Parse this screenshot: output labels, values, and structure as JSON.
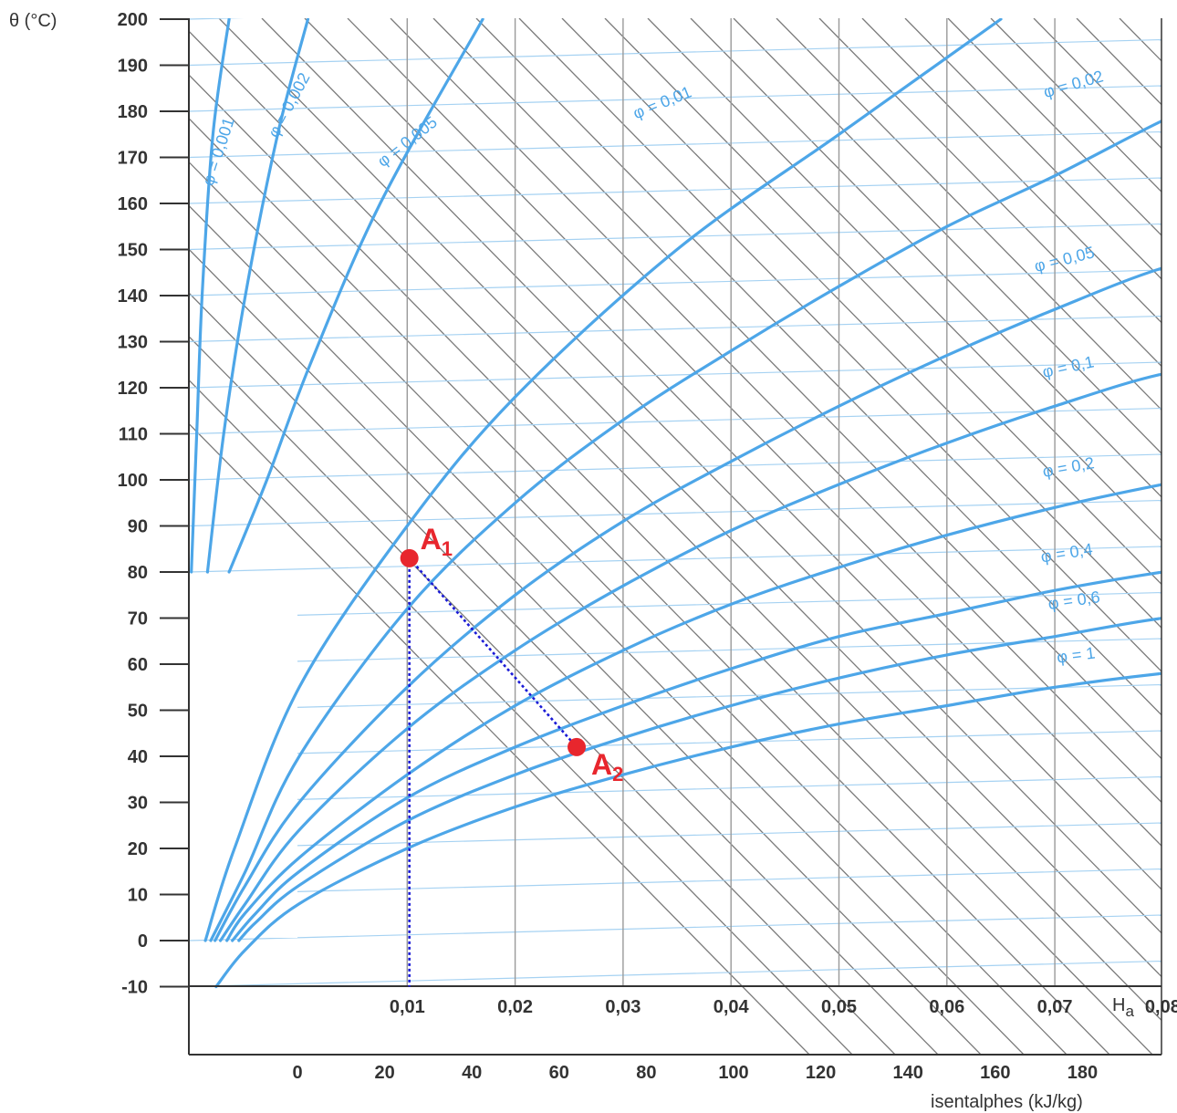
{
  "chart_data": {
    "type": "line",
    "title": "",
    "ylabel": "θ (°C)",
    "xlabel": "H",
    "xlabel_sub": "a",
    "x2label": "isentalphes (kJ/kg)",
    "ylim": [
      -10,
      200
    ],
    "xlim": [
      -0.01,
      0.08
    ],
    "y_ticks": [
      "200",
      "190",
      "180",
      "170",
      "160",
      "150",
      "140",
      "130",
      "120",
      "110",
      "100",
      "90",
      "80",
      "70",
      "60",
      "50",
      "40",
      "30",
      "20",
      "10",
      "0",
      "-10"
    ],
    "x_ticks": [
      {
        "value": 0.01,
        "label": "0,01"
      },
      {
        "value": 0.02,
        "label": "0,02"
      },
      {
        "value": 0.03,
        "label": "0,03"
      },
      {
        "value": 0.04,
        "label": "0,04"
      },
      {
        "value": 0.05,
        "label": "0,05"
      },
      {
        "value": 0.06,
        "label": "0,06"
      },
      {
        "value": 0.07,
        "label": "0,07"
      },
      {
        "value": 0.08,
        "label": "0,08"
      }
    ],
    "enthalpy_ticks": [
      {
        "value": 0,
        "label": "0"
      },
      {
        "value": 20,
        "label": "20"
      },
      {
        "value": 40,
        "label": "40"
      },
      {
        "value": 60,
        "label": "60"
      },
      {
        "value": 80,
        "label": "80"
      },
      {
        "value": 100,
        "label": "100"
      },
      {
        "value": 120,
        "label": "120"
      },
      {
        "value": 140,
        "label": "140"
      },
      {
        "value": 160,
        "label": "160"
      },
      {
        "value": 180,
        "label": "180"
      }
    ],
    "grid": true,
    "series": [
      {
        "label": "φ = 0,001",
        "x": [
          -0.01,
          -0.0095,
          -0.009,
          -0.008,
          -0.0065
        ],
        "y": [
          80,
          110,
          140,
          175,
          200
        ]
      },
      {
        "label": "φ = 0,002",
        "x": [
          -0.0085,
          -0.007,
          -0.005,
          -0.002,
          0.0008
        ],
        "y": [
          80,
          110,
          140,
          175,
          200
        ]
      },
      {
        "label": "φ = 0,005",
        "x": [
          -0.0065,
          -0.003,
          0.001,
          0.0075,
          0.017
        ],
        "y": [
          80,
          100,
          125,
          160,
          200
        ]
      },
      {
        "label": "φ = 0,01",
        "x": [
          -0.0087,
          -0.006,
          0.0,
          0.01,
          0.02,
          0.035,
          0.05,
          0.065
        ],
        "y": [
          0,
          20,
          55,
          90,
          118,
          150,
          175,
          200
        ]
      },
      {
        "label": "φ = 0,02",
        "x": [
          -0.0082,
          -0.005,
          0.0,
          0.01,
          0.02,
          0.03,
          0.04,
          0.05,
          0.06,
          0.07,
          0.08,
          0.0895
        ],
        "y": [
          0,
          15,
          40,
          72,
          95,
          113,
          128,
          142,
          155,
          166,
          178,
          188
        ]
      },
      {
        "label": "φ = 0,05",
        "x": [
          -0.0078,
          -0.005,
          0.0,
          0.01,
          0.02,
          0.03,
          0.04,
          0.05,
          0.06,
          0.07,
          0.08,
          0.0895
        ],
        "y": [
          0,
          12,
          30,
          55,
          75,
          91,
          104,
          116,
          127,
          137,
          146,
          151
        ]
      },
      {
        "label": "φ = 0,1",
        "x": [
          -0.0073,
          -0.005,
          0.0,
          0.01,
          0.02,
          0.03,
          0.04,
          0.05,
          0.06,
          0.07,
          0.08,
          0.0895
        ],
        "y": [
          0,
          8,
          24,
          46,
          63,
          77,
          89,
          99,
          108,
          116,
          123,
          126
        ]
      },
      {
        "label": "φ = 0,2",
        "x": [
          -0.0067,
          -0.005,
          0.0,
          0.01,
          0.02,
          0.03,
          0.04,
          0.05,
          0.06,
          0.07,
          0.08,
          0.0895
        ],
        "y": [
          0,
          6,
          18,
          36,
          51,
          63,
          73,
          81,
          88,
          94,
          99,
          103
        ]
      },
      {
        "label": "φ = 0,4",
        "x": [
          -0.0062,
          -0.004,
          0.0,
          0.01,
          0.02,
          0.03,
          0.04,
          0.05,
          0.06,
          0.07,
          0.08,
          0.0895
        ],
        "y": [
          0,
          6,
          15,
          31,
          42,
          51,
          59,
          66,
          71,
          76,
          80,
          83
        ]
      },
      {
        "label": "φ = 0,6",
        "x": [
          -0.0056,
          -0.004,
          0.0,
          0.01,
          0.02,
          0.03,
          0.04,
          0.05,
          0.06,
          0.07,
          0.08,
          0.0895
        ],
        "y": [
          0,
          4,
          12,
          26,
          36,
          44,
          51,
          57,
          62,
          66,
          70,
          72
        ]
      },
      {
        "label": "φ = 1",
        "x": [
          -0.0077,
          -0.005,
          0.0,
          0.01,
          0.02,
          0.03,
          0.04,
          0.05,
          0.06,
          0.07,
          0.08,
          0.0895
        ],
        "y": [
          -10,
          -2,
          8,
          20,
          29,
          36,
          42,
          47,
          51,
          55,
          58,
          60
        ]
      }
    ],
    "points": [
      {
        "label": "A",
        "sub": "1",
        "x": 0.0102,
        "y": 83
      },
      {
        "label": "A",
        "sub": "2",
        "x": 0.0257,
        "y": 42
      }
    ],
    "guide_lines": [
      {
        "x": [
          0.0102,
          0.0102
        ],
        "y": [
          83,
          -10
        ]
      },
      {
        "x": [
          0.0102,
          0.0257
        ],
        "y": [
          83,
          42
        ]
      }
    ],
    "colors": {
      "curve": "#4da6e8",
      "grid_fine": "#a6d2f2",
      "isenthalp": "#7a7a7a",
      "points": "#e8262d",
      "guide": "#1a1ad6",
      "axes": "#333333"
    }
  }
}
